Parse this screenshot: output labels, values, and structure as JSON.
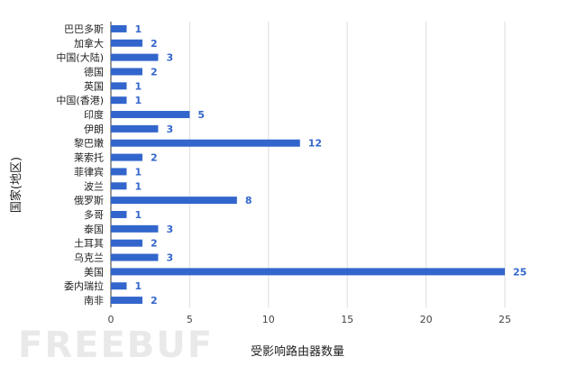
{
  "chart_data": {
    "type": "bar",
    "orientation": "horizontal",
    "categories": [
      "巴巴多斯",
      "加拿大",
      "中国(大陆)",
      "德国",
      "英国",
      "中国(香港)",
      "印度",
      "伊朗",
      "黎巴嫩",
      "莱索托",
      "菲律宾",
      "波兰",
      "俄罗斯",
      "多哥",
      "泰国",
      "土耳其",
      "乌克兰",
      "美国",
      "委内瑞拉",
      "南非"
    ],
    "values": [
      1,
      2,
      3,
      2,
      1,
      1,
      5,
      3,
      12,
      2,
      1,
      1,
      8,
      1,
      3,
      2,
      3,
      25,
      1,
      2
    ],
    "xlabel": "受影响路由器数量",
    "ylabel": "国家(地区)",
    "xlim": [
      0,
      25
    ],
    "xticks": [
      0,
      5,
      10,
      15,
      20,
      25
    ],
    "grid": true,
    "data_labels": true,
    "bar_color": "#3366cc"
  },
  "watermark": {
    "text": "FREEBUF"
  }
}
